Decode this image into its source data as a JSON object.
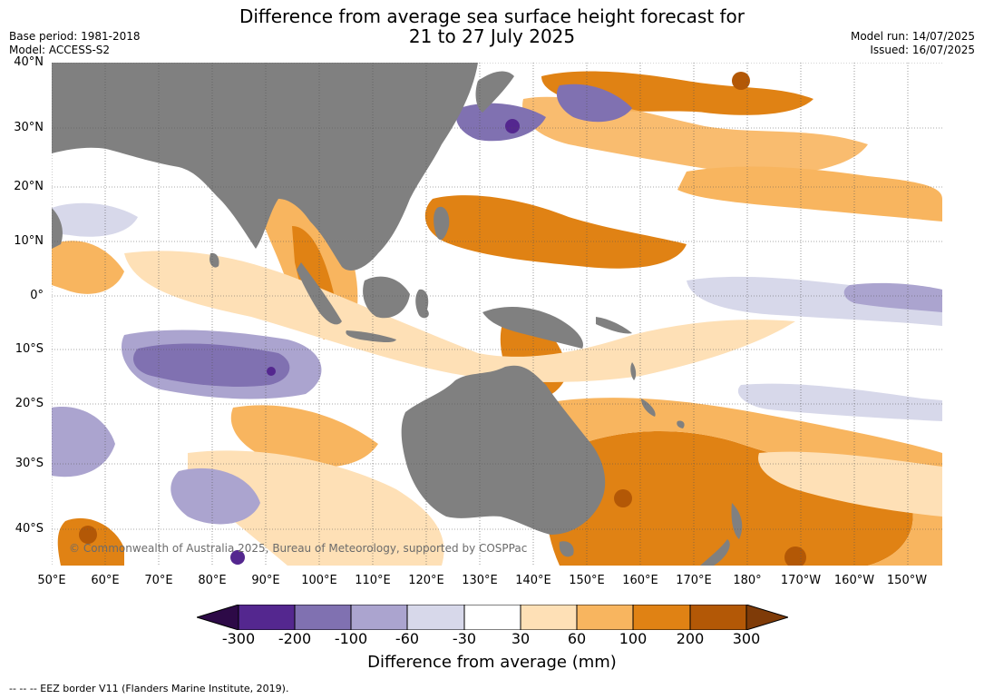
{
  "title": {
    "line1": "Difference from average sea surface height forecast for",
    "line2": "21 to 27 July 2025"
  },
  "meta": {
    "base_period": "Base period: 1981-2018",
    "model": "Model: ACCESS-S2",
    "model_run": "Model run: 14/07/2025",
    "issued": "Issued: 16/07/2025"
  },
  "map": {
    "lat_labels": [
      "40°N",
      "30°N",
      "20°N",
      "10°N",
      "0°",
      "10°S",
      "20°S",
      "30°S",
      "40°S"
    ],
    "lon_labels": [
      "50°E",
      "60°E",
      "70°E",
      "80°E",
      "90°E",
      "100°E",
      "110°E",
      "120°E",
      "130°E",
      "140°E",
      "150°E",
      "160°E",
      "170°E",
      "180°",
      "170°W",
      "160°W",
      "150°W"
    ],
    "copyright": "© Commonwealth of Australia 2025, Bureau of Meteorology, supported by COSPPac",
    "land_color": "#808080",
    "ocean_color": "#ffffff"
  },
  "legend": {
    "ticks": [
      "-300",
      "-200",
      "-100",
      "-60",
      "-30",
      "30",
      "60",
      "100",
      "200",
      "300"
    ],
    "label": "Difference from average (mm)",
    "colors": {
      "below_min": "#2d0a47",
      "bins": [
        "#54278f",
        "#8071b1",
        "#aba4cf",
        "#d7d8ea",
        "#ffffff",
        "#fee0b6",
        "#f8b55f",
        "#e08214",
        "#b35806"
      ],
      "above_max": "#7f3b08"
    }
  },
  "footnote": "--  --  -- EEZ border V11 (Flanders Marine Institute, 2019)."
}
